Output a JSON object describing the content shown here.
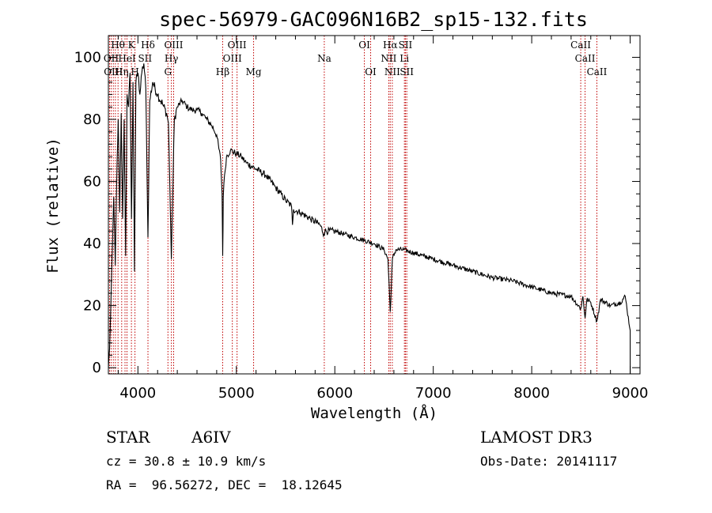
{
  "chart_data": {
    "type": "line",
    "title": "spec-56979-GAC096N16B2_sp15-132.fits",
    "xlabel": "Wavelength (Å)",
    "ylabel": "Flux (relative)",
    "xlim": [
      3700,
      9100
    ],
    "ylim": [
      -2,
      107
    ],
    "xticks": [
      4000,
      5000,
      6000,
      7000,
      8000,
      9000
    ],
    "yticks": [
      0,
      20,
      40,
      60,
      80,
      100
    ],
    "spectrum_anchors": [
      [
        3700,
        0
      ],
      [
        3712,
        6
      ],
      [
        3725,
        20
      ],
      [
        3740,
        38
      ],
      [
        3755,
        55
      ],
      [
        3770,
        33
      ],
      [
        3785,
        61
      ],
      [
        3800,
        80
      ],
      [
        3815,
        50
      ],
      [
        3830,
        82
      ],
      [
        3845,
        48
      ],
      [
        3860,
        80
      ],
      [
        3875,
        36
      ],
      [
        3890,
        88
      ],
      [
        3905,
        84
      ],
      [
        3920,
        95
      ],
      [
        3935,
        48
      ],
      [
        3950,
        92
      ],
      [
        3965,
        31
      ],
      [
        3980,
        92
      ],
      [
        4000,
        95
      ],
      [
        4020,
        88
      ],
      [
        4040,
        95
      ],
      [
        4060,
        98
      ],
      [
        4080,
        90
      ],
      [
        4102,
        42
      ],
      [
        4120,
        86
      ],
      [
        4150,
        92
      ],
      [
        4200,
        88
      ],
      [
        4250,
        85
      ],
      [
        4290,
        82
      ],
      [
        4310,
        79
      ],
      [
        4340,
        35
      ],
      [
        4370,
        80
      ],
      [
        4400,
        84
      ],
      [
        4450,
        86
      ],
      [
        4500,
        84
      ],
      [
        4550,
        83
      ],
      [
        4600,
        83
      ],
      [
        4650,
        82
      ],
      [
        4700,
        80
      ],
      [
        4750,
        78
      ],
      [
        4800,
        75
      ],
      [
        4840,
        67
      ],
      [
        4855,
        56
      ],
      [
        4861,
        36
      ],
      [
        4867,
        55
      ],
      [
        4880,
        62
      ],
      [
        4900,
        68
      ],
      [
        4940,
        70
      ],
      [
        5000,
        69
      ],
      [
        5050,
        68
      ],
      [
        5100,
        66
      ],
      [
        5200,
        64
      ],
      [
        5300,
        62
      ],
      [
        5400,
        58
      ],
      [
        5500,
        54
      ],
      [
        5560,
        52
      ],
      [
        5570,
        46
      ],
      [
        5580,
        51
      ],
      [
        5650,
        50
      ],
      [
        5750,
        48
      ],
      [
        5850,
        46
      ],
      [
        5890,
        43
      ],
      [
        5900,
        44
      ],
      [
        6000,
        44
      ],
      [
        6100,
        43
      ],
      [
        6200,
        42
      ],
      [
        6300,
        41
      ],
      [
        6400,
        40
      ],
      [
        6500,
        38
      ],
      [
        6540,
        35
      ],
      [
        6563,
        18
      ],
      [
        6585,
        35
      ],
      [
        6620,
        38
      ],
      [
        6700,
        38
      ],
      [
        6800,
        37
      ],
      [
        6900,
        36
      ],
      [
        7000,
        35
      ],
      [
        7200,
        33
      ],
      [
        7400,
        31
      ],
      [
        7600,
        29
      ],
      [
        7800,
        28
      ],
      [
        8000,
        26
      ],
      [
        8200,
        24
      ],
      [
        8400,
        23
      ],
      [
        8498,
        19
      ],
      [
        8520,
        23
      ],
      [
        8542,
        16
      ],
      [
        8560,
        22
      ],
      [
        8600,
        21
      ],
      [
        8662,
        15
      ],
      [
        8700,
        22
      ],
      [
        8800,
        20
      ],
      [
        8900,
        21
      ],
      [
        8950,
        23
      ],
      [
        9000,
        12
      ]
    ],
    "line_markers": [
      {
        "wavelength": 3712,
        "dash": "dotted"
      },
      {
        "wavelength": 3728,
        "dash": "dotted"
      },
      {
        "wavelength": 3750,
        "dash": "dotted"
      },
      {
        "wavelength": 3771,
        "dash": "dotted"
      },
      {
        "wavelength": 3798,
        "dash": "dotted"
      },
      {
        "wavelength": 3835,
        "dash": "dotted"
      },
      {
        "wavelength": 3869,
        "dash": "dotted"
      },
      {
        "wavelength": 3889,
        "dash": "dotted"
      },
      {
        "wavelength": 3934,
        "dash": "dotted"
      },
      {
        "wavelength": 3970,
        "dash": "dotted"
      },
      {
        "wavelength": 4102,
        "dash": "dotted"
      },
      {
        "wavelength": 4305,
        "dash": "dotted"
      },
      {
        "wavelength": 4340,
        "dash": "dotted"
      },
      {
        "wavelength": 4363,
        "dash": "dotted"
      },
      {
        "wavelength": 4861,
        "dash": "dotted"
      },
      {
        "wavelength": 4959,
        "dash": "dotted"
      },
      {
        "wavelength": 5007,
        "dash": "dotted"
      },
      {
        "wavelength": 5175,
        "dash": "dotted"
      },
      {
        "wavelength": 5893,
        "dash": "dotted"
      },
      {
        "wavelength": 6300,
        "dash": "dotted"
      },
      {
        "wavelength": 6364,
        "dash": "dotted"
      },
      {
        "wavelength": 6548,
        "dash": "dotted"
      },
      {
        "wavelength": 6563,
        "dash": "dotted"
      },
      {
        "wavelength": 6584,
        "dash": "dotted"
      },
      {
        "wavelength": 6707,
        "dash": "dotted"
      },
      {
        "wavelength": 6717,
        "dash": "dotted"
      },
      {
        "wavelength": 6731,
        "dash": "dotted"
      },
      {
        "wavelength": 8498,
        "dash": "dotted"
      },
      {
        "wavelength": 8542,
        "dash": "dotted"
      },
      {
        "wavelength": 8662,
        "dash": "dotted"
      }
    ],
    "line_labels": [
      {
        "text": "Hθ",
        "wavelength": 3797,
        "row": 1
      },
      {
        "text": "K",
        "wavelength": 3934,
        "row": 1
      },
      {
        "text": "Hδ",
        "wavelength": 4102,
        "row": 1
      },
      {
        "text": "OIII",
        "wavelength": 4363,
        "row": 1
      },
      {
        "text": "OIII",
        "wavelength": 5007,
        "row": 1
      },
      {
        "text": "OI",
        "wavelength": 6300,
        "row": 1
      },
      {
        "text": "Hα",
        "wavelength": 6563,
        "row": 1
      },
      {
        "text": "SII",
        "wavelength": 6717,
        "row": 1
      },
      {
        "text": "CaII",
        "wavelength": 8498,
        "row": 1
      },
      {
        "text": "OII",
        "wavelength": 3728,
        "row": 2
      },
      {
        "text": "HeI",
        "wavelength": 3889,
        "row": 2
      },
      {
        "text": "SII",
        "wavelength": 4072,
        "row": 2
      },
      {
        "text": "Hγ",
        "wavelength": 4340,
        "row": 2
      },
      {
        "text": "OIII",
        "wavelength": 4959,
        "row": 2
      },
      {
        "text": "Na",
        "wavelength": 5893,
        "row": 2
      },
      {
        "text": "NII",
        "wavelength": 6548,
        "row": 2
      },
      {
        "text": "Li",
        "wavelength": 6707,
        "row": 2
      },
      {
        "text": "CaII",
        "wavelength": 8542,
        "row": 2
      },
      {
        "text": "OIII",
        "wavelength": 3750,
        "row": 3
      },
      {
        "text": "Hη",
        "wavelength": 3835,
        "row": 3
      },
      {
        "text": "H",
        "wavelength": 3970,
        "row": 3
      },
      {
        "text": "G",
        "wavelength": 4305,
        "row": 3
      },
      {
        "text": "Hβ",
        "wavelength": 4861,
        "row": 3
      },
      {
        "text": "Mg",
        "wavelength": 5175,
        "row": 3
      },
      {
        "text": "OI",
        "wavelength": 6364,
        "row": 3
      },
      {
        "text": "NII",
        "wavelength": 6584,
        "row": 3
      },
      {
        "text": "SII",
        "wavelength": 6731,
        "row": 3
      },
      {
        "text": "CaII",
        "wavelength": 8662,
        "row": 3
      }
    ]
  },
  "info": {
    "class": "STAR",
    "subclass": "A6IV",
    "survey": "LAMOST DR3",
    "redshift": "cz = 30.8 ± 10.9 km/s",
    "obs_date": "Obs-Date: 20141117",
    "coords": "RA =  96.56272, DEC =  18.12645"
  },
  "colors": {
    "line_marker": "#c00000",
    "spectrum": "#000000"
  }
}
